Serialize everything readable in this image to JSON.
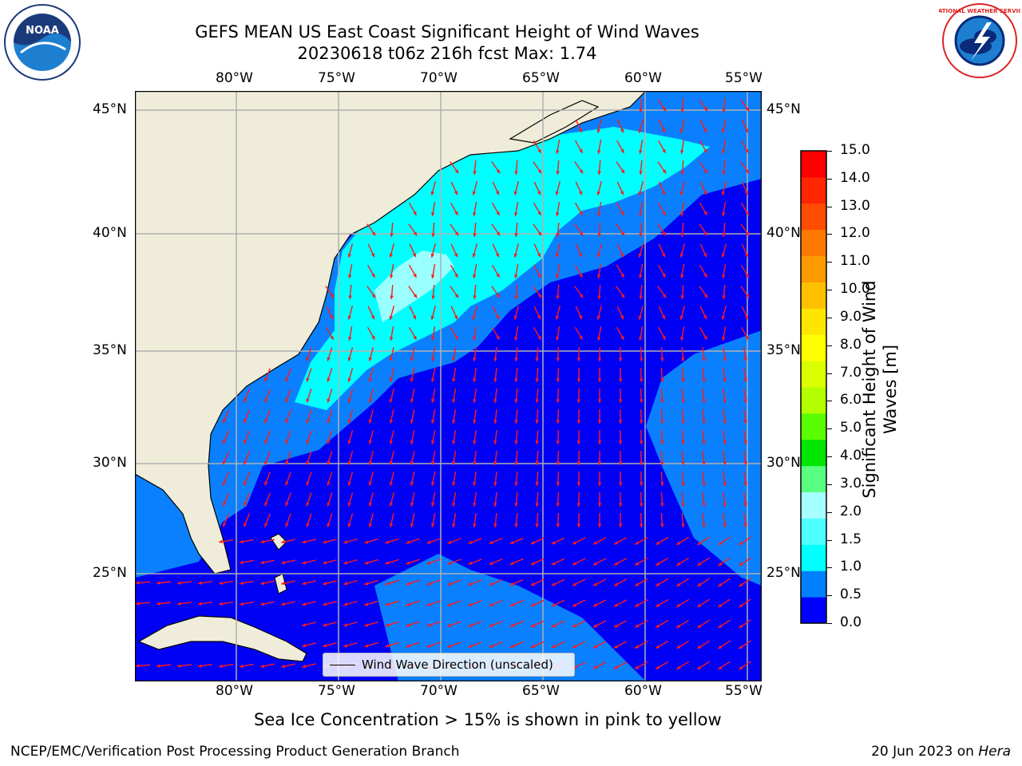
{
  "title": {
    "line1": "GEFS MEAN US East Coast Significant Height of Wind Waves",
    "line2": "20230618 t06z 216h fcst   Max: 1.74"
  },
  "logos": {
    "left": "NOAA",
    "right": "NATIONAL WEATHER SERVICE"
  },
  "axes": {
    "lon_labels": [
      "80°W",
      "75°W",
      "70°W",
      "65°W",
      "60°W",
      "55°W"
    ],
    "lat_labels": [
      "45°N",
      "40°N",
      "35°N",
      "30°N",
      "25°N"
    ]
  },
  "legend": {
    "label": "Wind Wave Direction (unscaled)"
  },
  "colorbar": {
    "title_line1": "Significant Height of Wind",
    "title_line2": "Waves [m]",
    "ticks": [
      "15.0",
      "14.0",
      "13.0",
      "12.0",
      "11.0",
      "10.0",
      "9.0",
      "8.0",
      "7.0",
      "6.0",
      "5.0",
      "4.0",
      "3.0",
      "2.0",
      "1.5",
      "1.0",
      "0.5",
      "0.0"
    ],
    "colors_bottom_to_top": [
      "#0000ff",
      "#0080ff",
      "#00ffff",
      "#4dffff",
      "#a6ffff",
      "#59ff80",
      "#00e600",
      "#59ff00",
      "#b3ff00",
      "#d9ff00",
      "#ffff00",
      "#ffe600",
      "#ffc000",
      "#ff9900",
      "#ff7a00",
      "#ff4d00",
      "#ff2600",
      "#ff0000"
    ]
  },
  "map_colors": {
    "land": "#efedd9",
    "deep": "#0000f5",
    "mid": "#0a80ff",
    "cyan": "#00ffff",
    "light": "#99ffff",
    "arrow": "#ff1a1a"
  },
  "note": "Sea Ice Concentration > 15% is shown in pink to yellow",
  "footer": {
    "left": "NCEP/EMC/Verification Post Processing Product Generation Branch",
    "right_date": "20 Jun 2023 on ",
    "right_host": "Hera"
  }
}
